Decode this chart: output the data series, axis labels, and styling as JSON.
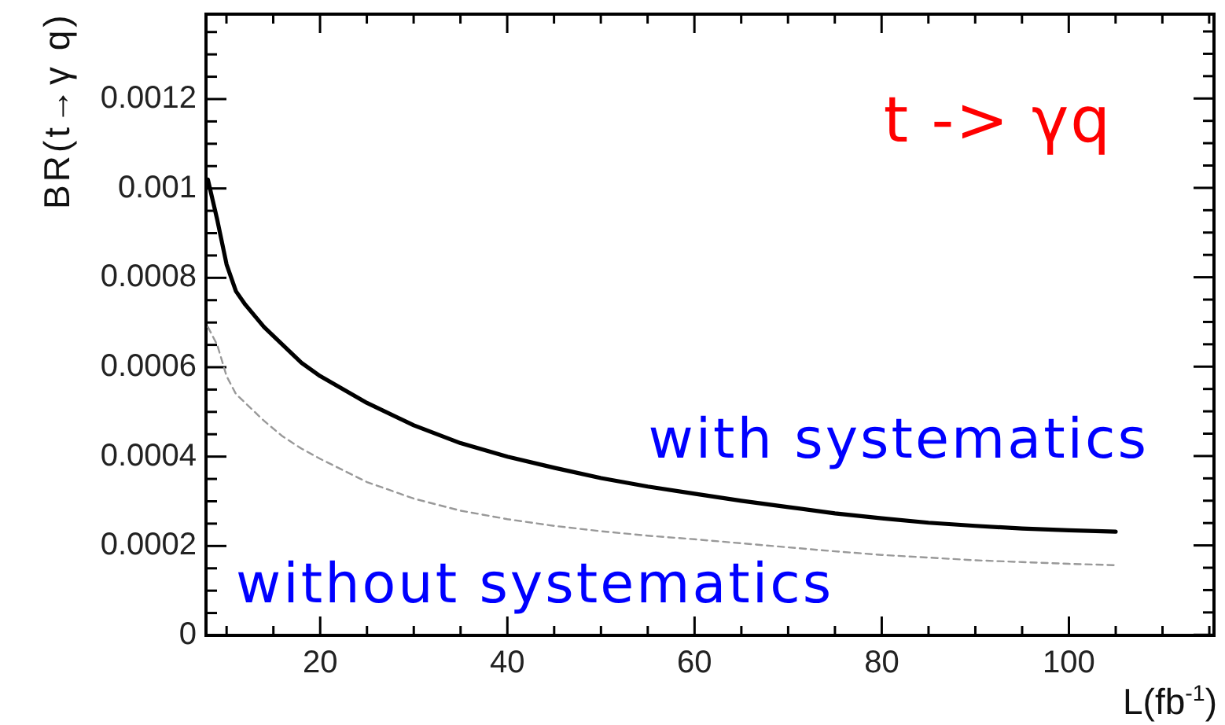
{
  "chart_data": {
    "type": "line",
    "title": "t -> γq",
    "xlabel": "L(fb$^{-1}$)",
    "ylabel": "BR(t→γ q)",
    "x": [
      8,
      9,
      10,
      11,
      12,
      14,
      16,
      18,
      20,
      25,
      30,
      35,
      40,
      45,
      50,
      55,
      60,
      65,
      70,
      75,
      80,
      85,
      90,
      95,
      100,
      105
    ],
    "series": [
      {
        "name": "with systematics",
        "color": "#000000",
        "line_style": "solid",
        "values": [
          0.00102,
          0.00093,
          0.00083,
          0.00077,
          0.00074,
          0.00069,
          0.00065,
          0.00061,
          0.00058,
          0.00052,
          0.00047,
          0.00043,
          0.0004,
          0.000375,
          0.000352,
          0.000333,
          0.000317,
          0.000301,
          0.000287,
          0.000273,
          0.000262,
          0.000252,
          0.000245,
          0.000239,
          0.000235,
          0.000232
        ]
      },
      {
        "name": "without systematics",
        "color": "#999999",
        "line_style": "dashed",
        "values": [
          0.00069,
          0.00065,
          0.00058,
          0.00054,
          0.00052,
          0.00048,
          0.000445,
          0.000418,
          0.000395,
          0.000343,
          0.000306,
          0.000279,
          0.00026,
          0.000245,
          0.000233,
          0.000223,
          0.000215,
          0.000206,
          0.000197,
          0.000188,
          0.00018,
          0.000174,
          0.000168,
          0.000164,
          0.00016,
          0.000157
        ]
      }
    ],
    "xlim": [
      7.8,
      115.5
    ],
    "ylim": [
      0,
      0.00139
    ],
    "xticks": [
      {
        "value": 10,
        "label": null
      },
      {
        "value": 15,
        "label": null
      },
      20,
      {
        "value": 25,
        "label": null
      },
      {
        "value": 30,
        "label": null
      },
      {
        "value": 35,
        "label": null
      },
      40,
      {
        "value": 45,
        "label": null
      },
      {
        "value": 50,
        "label": null
      },
      {
        "value": 55,
        "label": null
      },
      60,
      {
        "value": 65,
        "label": null
      },
      {
        "value": 70,
        "label": null
      },
      {
        "value": 75,
        "label": null
      },
      80,
      {
        "value": 85,
        "label": null
      },
      {
        "value": 90,
        "label": null
      },
      {
        "value": 95,
        "label": null
      },
      100,
      {
        "value": 105,
        "label": null
      },
      {
        "value": 110,
        "label": null
      },
      {
        "value": 115,
        "label": null
      }
    ],
    "yticks": [
      0,
      {
        "value": 5e-05,
        "label": null
      },
      {
        "value": 0.0001,
        "label": null
      },
      {
        "value": 0.00015,
        "label": null
      },
      0.0002,
      {
        "value": 0.00025,
        "label": null
      },
      {
        "value": 0.0003,
        "label": null
      },
      {
        "value": 0.00035,
        "label": null
      },
      0.0004,
      {
        "value": 0.00045,
        "label": null
      },
      {
        "value": 0.0005,
        "label": null
      },
      {
        "value": 0.00055,
        "label": null
      },
      0.0006,
      {
        "value": 0.00065,
        "label": null
      },
      {
        "value": 0.0007,
        "label": null
      },
      {
        "value": 0.00075,
        "label": null
      },
      0.0008,
      {
        "value": 0.00085,
        "label": null
      },
      {
        "value": 0.0009,
        "label": null
      },
      {
        "value": 0.00095,
        "label": null
      },
      0.001,
      {
        "value": 0.00105,
        "label": null
      },
      {
        "value": 0.0011,
        "label": null
      },
      {
        "value": 0.00115,
        "label": null
      },
      0.0012,
      {
        "value": 0.00125,
        "label": null
      },
      {
        "value": 0.0013,
        "label": null
      },
      {
        "value": 0.00135,
        "label": null
      }
    ]
  }
}
